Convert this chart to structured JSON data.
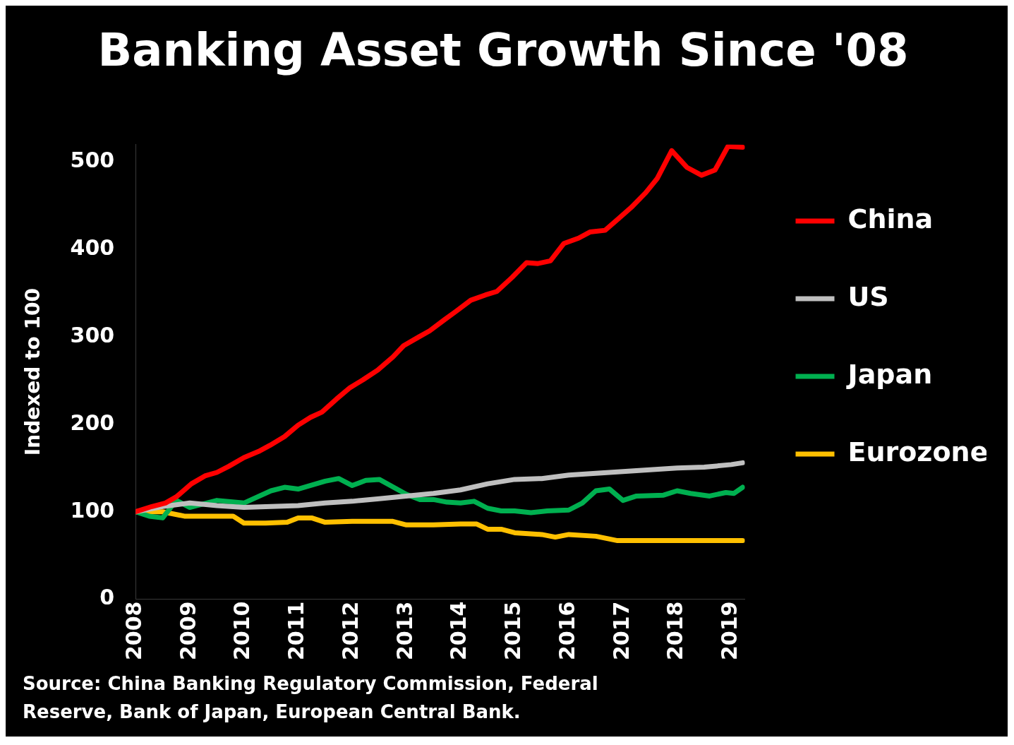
{
  "chart_data": {
    "type": "line",
    "title": "Banking Asset Growth Since '08",
    "ylabel": "Indexed to 100",
    "annotations": [
      "Source: China Banking Regulatory Commission, Federal Reserve, Bank of Japan, European Central Bank."
    ],
    "xlim": [
      2008,
      2019.25
    ],
    "xticks": [
      2008,
      2009,
      2010,
      2011,
      2012,
      2013,
      2014,
      2015,
      2016,
      2017,
      2018,
      2019
    ],
    "ylim": [
      0,
      520
    ],
    "yticks": [
      0,
      100,
      200,
      300,
      400,
      500
    ],
    "grid": false,
    "legend": "right",
    "marker": "none",
    "line_style": "solid",
    "series": [
      {
        "name": "China",
        "color": "#ff0000",
        "x": [
          2008,
          2008.3,
          2008.55,
          2008.75,
          2009.03,
          2009.28,
          2009.5,
          2009.72,
          2010,
          2010.27,
          2010.48,
          2010.75,
          2011,
          2011.23,
          2011.44,
          2011.71,
          2011.96,
          2012.2,
          2012.47,
          2012.75,
          2012.95,
          2013.23,
          2013.43,
          2013.71,
          2013.91,
          2014.19,
          2014.46,
          2014.67,
          2014.95,
          2015.22,
          2015.43,
          2015.66,
          2015.91,
          2016.18,
          2016.39,
          2016.67,
          2016.91,
          2017.15,
          2017.42,
          2017.63,
          2017.9,
          2018.18,
          2018.45,
          2018.7,
          2018.94,
          2019.21
        ],
        "values": [
          100,
          106,
          110,
          117,
          132,
          141,
          145,
          152,
          162,
          169,
          176,
          186,
          199,
          208,
          214,
          229,
          242,
          251,
          262,
          277,
          290,
          300,
          307,
          320,
          329,
          342,
          348,
          352,
          368,
          385,
          384,
          387,
          407,
          413,
          420,
          422,
          435,
          448,
          465,
          481,
          513,
          494,
          485,
          491,
          518,
          517
        ]
      },
      {
        "name": "US",
        "color": "#bfbfbf",
        "x": [
          2008,
          2008.5,
          2009,
          2009.5,
          2010,
          2010.5,
          2011,
          2011.5,
          2012,
          2012.5,
          2013,
          2013.5,
          2014,
          2014.5,
          2015,
          2015.5,
          2016,
          2016.5,
          2017,
          2017.5,
          2018,
          2018.5,
          2019,
          2019.21
        ],
        "values": [
          100,
          106,
          110,
          107,
          105,
          106,
          107,
          110,
          112,
          115,
          118,
          121,
          125,
          132,
          137,
          138,
          142,
          144,
          146,
          148,
          150,
          151,
          154,
          156
        ]
      },
      {
        "name": "Japan",
        "color": "#00b050",
        "x": [
          2008,
          2008.25,
          2008.5,
          2008.75,
          2009,
          2009.5,
          2010,
          2010.5,
          2010.75,
          2011,
          2011.5,
          2011.75,
          2012,
          2012.25,
          2012.5,
          2013,
          2013.25,
          2013.5,
          2013.75,
          2014,
          2014.25,
          2014.5,
          2014.75,
          2015,
          2015.3,
          2015.6,
          2016,
          2016.25,
          2016.5,
          2016.75,
          2017,
          2017.25,
          2017.75,
          2018,
          2018.25,
          2018.6,
          2018.9,
          2019.05,
          2019.21
        ],
        "values": [
          100,
          95,
          93,
          113,
          105,
          113,
          110,
          124,
          128,
          126,
          135,
          138,
          130,
          136,
          137,
          120,
          114,
          114,
          111,
          110,
          112,
          104,
          101,
          101,
          99,
          101,
          102,
          110,
          124,
          126,
          113,
          118,
          119,
          124,
          121,
          118,
          122,
          121,
          128
        ]
      },
      {
        "name": "Eurozone",
        "color": "#ffc000",
        "x": [
          2008,
          2008.5,
          2008.9,
          2009.5,
          2009.8,
          2010,
          2010.4,
          2010.8,
          2011,
          2011.25,
          2011.5,
          2012,
          2012.75,
          2013,
          2013.5,
          2014,
          2014.3,
          2014.5,
          2014.75,
          2015,
          2015.5,
          2015.75,
          2016,
          2016.5,
          2016.9,
          2019.21
        ],
        "values": [
          100,
          100,
          95,
          95,
          95,
          87,
          87,
          88,
          93,
          93,
          88,
          89,
          89,
          85,
          85,
          86,
          86,
          80,
          80,
          76,
          74,
          71,
          74,
          72,
          67,
          67
        ]
      }
    ]
  }
}
